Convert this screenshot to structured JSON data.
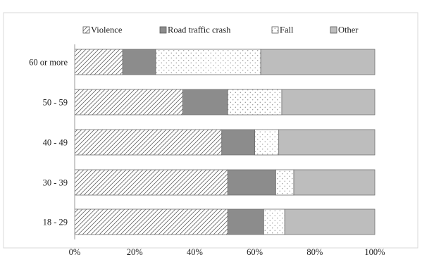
{
  "chart_data": {
    "type": "bar",
    "orientation": "horizontal",
    "stacked": true,
    "percent": true,
    "title": "",
    "xlabel": "",
    "ylabel": "",
    "xlim": [
      0,
      100
    ],
    "x_ticks": [
      "0%",
      "20%",
      "40%",
      "60%",
      "80%",
      "100%"
    ],
    "grid": false,
    "legend_position": "top",
    "categories": [
      "60 or more",
      "50 - 59",
      "40 - 49",
      "30 - 39",
      "18 - 29"
    ],
    "series": [
      {
        "name": "Violence",
        "pattern": "diagonal-hatch",
        "color": "#ffffff",
        "values": [
          16,
          36,
          49,
          51,
          51
        ]
      },
      {
        "name": "Road traffic crash",
        "pattern": "solid",
        "color": "#8c8c8c",
        "values": [
          11,
          15,
          11,
          16,
          12
        ]
      },
      {
        "name": "Fall",
        "pattern": "dots",
        "color": "#ffffff",
        "values": [
          35,
          18,
          8,
          6,
          7
        ]
      },
      {
        "name": "Other",
        "pattern": "solid",
        "color": "#bdbdbd",
        "values": [
          38,
          31,
          32,
          27,
          30
        ]
      }
    ]
  }
}
